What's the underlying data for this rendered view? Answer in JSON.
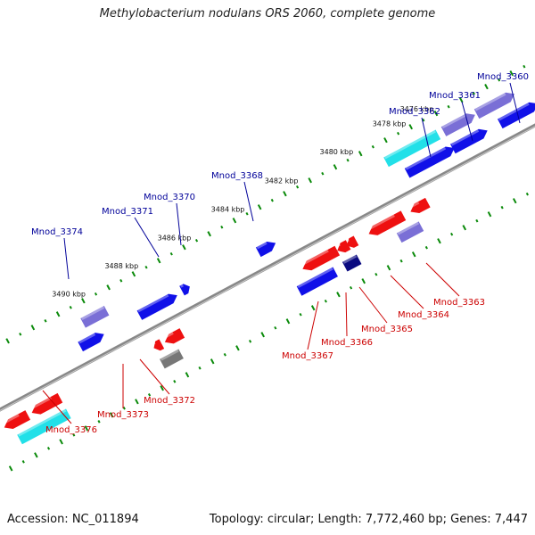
{
  "title": "Methylobacterium nodulans ORS 2060, complete genome",
  "footer": {
    "accession": "Accession: NC_011894",
    "summary": "Topology: circular; Length: 7,772,460 bp; Genes: 7,447"
  },
  "colors": {
    "forward": "#1010e8",
    "forward_light": "#7a6fd6",
    "reverse": "#ee1010",
    "reverse_dark": "#0a0a80",
    "cyan": "#22e0e8",
    "grey": "#777777",
    "backbone": "#888888",
    "tick": "#0a8a0a",
    "forward_label": "#000099",
    "reverse_label": "#cc0000"
  },
  "kbp_labels": [
    "3476 kbp",
    "3478 kbp",
    "3480 kbp",
    "3482 kbp",
    "3484 kbp",
    "3486 kbp",
    "3488 kbp",
    "3490 kbp"
  ],
  "forward_genes": [
    "Mnod_3360",
    "Mnod_3361",
    "Mnod_3362",
    "Mnod_3368",
    "Mnod_3370",
    "Mnod_3371",
    "Mnod_3374"
  ],
  "reverse_genes": [
    "Mnod_3363",
    "Mnod_3364",
    "Mnod_3365",
    "Mnod_3366",
    "Mnod_3367",
    "Mnod_3372",
    "Mnod_3373",
    "Mnod_3376"
  ]
}
